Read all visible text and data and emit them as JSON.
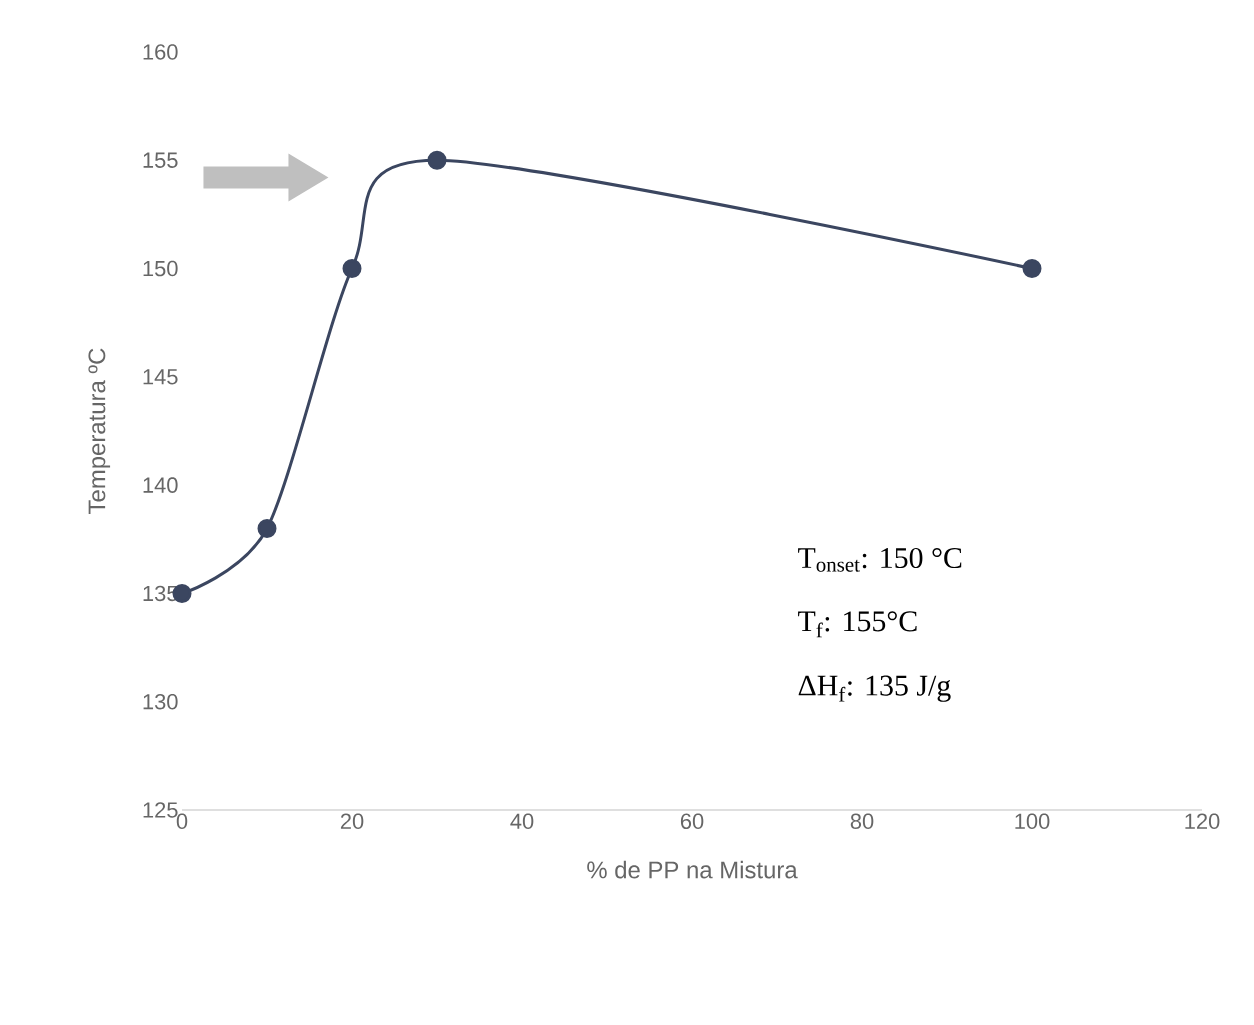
{
  "chart_data": {
    "type": "line",
    "xlabel": "% de PP na Mistura",
    "ylabel": "Temperatura ºC",
    "x": [
      0,
      10,
      20,
      30,
      100
    ],
    "values": [
      135,
      138,
      150,
      155,
      150
    ],
    "color": "#3b4660",
    "marker": "circle",
    "xlim": [
      0,
      120
    ],
    "xticks": [
      0,
      20,
      40,
      60,
      80,
      100,
      120
    ],
    "ylim": [
      125,
      160
    ],
    "yticks": [
      125,
      130,
      135,
      140,
      145,
      150,
      155,
      160
    ],
    "annotations": [
      "T$_{onset}$: 150 °C",
      "T$_{f}$: 155°C",
      "ΔH$_{f}$: 135 J/g"
    ]
  }
}
